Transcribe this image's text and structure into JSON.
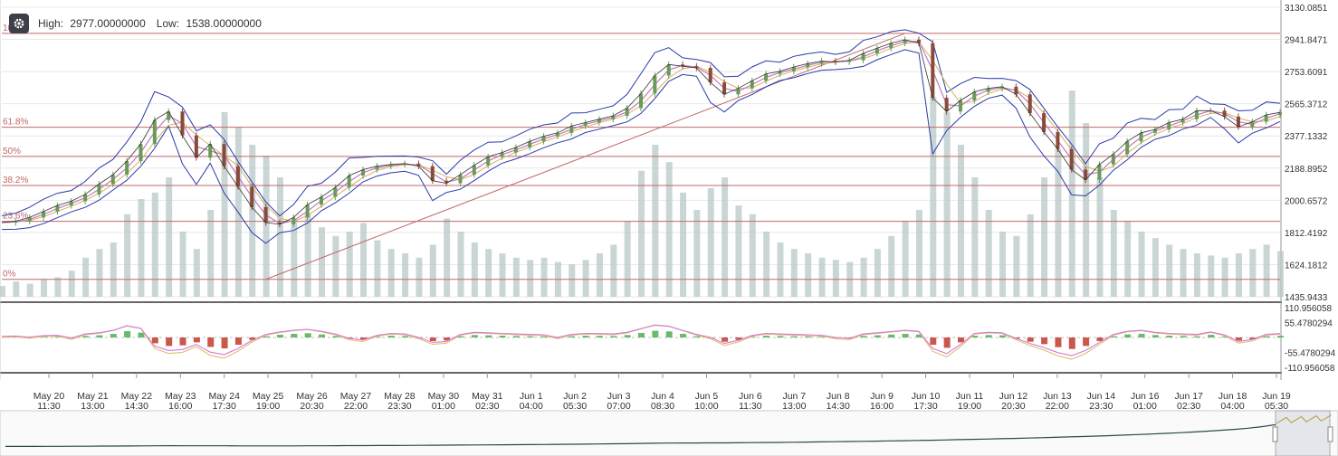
{
  "header": {
    "high_label": "High:",
    "high_value": "2977.00000000",
    "low_label": "Low:",
    "low_value": "1538.00000000",
    "settings_icon": "gear-icon"
  },
  "colors": {
    "fib_line": "#c06868",
    "volume": "#b8c8c8",
    "candle_up": "#6a9a5a",
    "candle_down": "#8a4a3a",
    "bollinger": "#2a3aaa",
    "ma1": "#c07ac0",
    "ma2": "#d8b060",
    "macd_pos": "#4caf50",
    "macd_neg": "#c0392b",
    "signal1": "#d47bd4",
    "signal2": "#e0c070",
    "navigator": "#2a4a4a"
  },
  "chart_data": [
    {
      "type": "line",
      "name": "price",
      "title": "",
      "y_ticks": [
        "3130.0851",
        "2941.8471",
        "2753.6091",
        "2565.3712",
        "2377.1332",
        "2188.8952",
        "2000.6572",
        "1812.4192",
        "1624.1812",
        "1435.9433"
      ],
      "ylim": [
        1435.9433,
        3130.0851
      ],
      "fib_levels": [
        {
          "label": "100%",
          "value": 2977
        },
        {
          "label": "61.8%",
          "value": 2427.7
        },
        {
          "label": "50%",
          "value": 2257.5
        },
        {
          "label": "38.2%",
          "value": 2087.3
        },
        {
          "label": "23.6%",
          "value": 1877.4
        },
        {
          "label": "0%",
          "value": 1538
        }
      ],
      "x_ticks": [
        {
          "date": "May 20",
          "time": "11:30"
        },
        {
          "date": "May 21",
          "time": "13:00"
        },
        {
          "date": "May 22",
          "time": "14:30"
        },
        {
          "date": "May 23",
          "time": "16:00"
        },
        {
          "date": "May 24",
          "time": "17:30"
        },
        {
          "date": "May 25",
          "time": "19:00"
        },
        {
          "date": "May 26",
          "time": "20:30"
        },
        {
          "date": "May 27",
          "time": "22:00"
        },
        {
          "date": "May 28",
          "time": "23:30"
        },
        {
          "date": "May 30",
          "time": "01:00"
        },
        {
          "date": "May 31",
          "time": "02:30"
        },
        {
          "date": "Jun 1",
          "time": "04:00"
        },
        {
          "date": "Jun 2",
          "time": "05:30"
        },
        {
          "date": "Jun 3",
          "time": "07:00"
        },
        {
          "date": "Jun 4",
          "time": "08:30"
        },
        {
          "date": "Jun 5",
          "time": "10:00"
        },
        {
          "date": "Jun 6",
          "time": "11:30"
        },
        {
          "date": "Jun 7",
          "time": "13:00"
        },
        {
          "date": "Jun 8",
          "time": "14:30"
        },
        {
          "date": "Jun 9",
          "time": "16:00"
        },
        {
          "date": "Jun 10",
          "time": "17:30"
        },
        {
          "date": "Jun 11",
          "time": "19:00"
        },
        {
          "date": "Jun 12",
          "time": "20:30"
        },
        {
          "date": "Jun 13",
          "time": "22:00"
        },
        {
          "date": "Jun 14",
          "time": "23:30"
        },
        {
          "date": "Jun 16",
          "time": "01:00"
        },
        {
          "date": "Jun 17",
          "time": "02:30"
        },
        {
          "date": "Jun 18",
          "time": "04:00"
        },
        {
          "date": "Jun 19",
          "time": "05:30"
        }
      ],
      "series": [
        {
          "values": [
            1870,
            1878,
            1900,
            1935,
            1970,
            1995,
            2035,
            2095,
            2150,
            2230,
            2330,
            2470,
            2520,
            2380,
            2250,
            2330,
            2200,
            2080,
            1960,
            1870,
            1860,
            1900,
            1975,
            2020,
            2075,
            2145,
            2180,
            2200,
            2210,
            2215,
            2200,
            2115,
            2100,
            2150,
            2205,
            2255,
            2280,
            2310,
            2345,
            2375,
            2395,
            2435,
            2455,
            2475,
            2495,
            2540,
            2625,
            2730,
            2795,
            2785,
            2775,
            2690,
            2620,
            2655,
            2700,
            2740,
            2755,
            2780,
            2800,
            2815,
            2810,
            2820,
            2860,
            2890,
            2920,
            2940,
            2920,
            2600,
            2520,
            2585,
            2635,
            2655,
            2665,
            2620,
            2510,
            2400,
            2300,
            2180,
            2120,
            2210,
            2270,
            2345,
            2395,
            2415,
            2455,
            2475,
            2525,
            2525,
            2490,
            2430,
            2460,
            2500,
            2515
          ]
        }
      ]
    },
    {
      "type": "bar",
      "name": "volume",
      "values": [
        5,
        7,
        6,
        8,
        9,
        12,
        18,
        22,
        25,
        38,
        45,
        48,
        55,
        30,
        22,
        40,
        85,
        78,
        70,
        65,
        55,
        35,
        38,
        32,
        28,
        30,
        34,
        26,
        22,
        20,
        18,
        24,
        36,
        30,
        25,
        22,
        20,
        18,
        17,
        18,
        16,
        15,
        17,
        20,
        24,
        35,
        58,
        70,
        62,
        48,
        40,
        50,
        55,
        42,
        38,
        30,
        25,
        22,
        20,
        18,
        17,
        16,
        18,
        22,
        28,
        35,
        40,
        92,
        85,
        70,
        55,
        40,
        30,
        28,
        38,
        55,
        68,
        95,
        80,
        55,
        40,
        35,
        30,
        27,
        24,
        22,
        20,
        19,
        18,
        20,
        22,
        24,
        21
      ]
    },
    {
      "type": "area",
      "name": "macd",
      "y_ticks": [
        "110.956058",
        "55.4780294",
        "-55.4780294",
        "-110.956058"
      ],
      "ylim": [
        -110.956058,
        110.956058
      ],
      "values": [
        0,
        2,
        -3,
        4,
        6,
        -8,
        12,
        18,
        30,
        52,
        40,
        -48,
        -70,
        -65,
        -40,
        -78,
        -90,
        -60,
        -20,
        10,
        22,
        30,
        35,
        25,
        12,
        -10,
        -18,
        5,
        15,
        12,
        -5,
        -30,
        -25,
        10,
        20,
        18,
        15,
        12,
        10,
        8,
        -5,
        10,
        15,
        14,
        12,
        20,
        38,
        55,
        50,
        30,
        10,
        -5,
        -35,
        -20,
        5,
        15,
        12,
        10,
        8,
        6,
        -5,
        -10,
        12,
        18,
        24,
        30,
        25,
        -60,
        -85,
        -40,
        15,
        20,
        18,
        -10,
        -35,
        -55,
        -80,
        -95,
        -70,
        -30,
        10,
        25,
        30,
        20,
        15,
        12,
        10,
        22,
        8,
        -25,
        -15,
        10,
        14
      ]
    },
    {
      "type": "line",
      "name": "navigator",
      "values": [
        1,
        1,
        1.1,
        1.2,
        1.3,
        1.4,
        1.5,
        1.7,
        1.8,
        2,
        2.2,
        2.4,
        2.5,
        2.4,
        2.3,
        2.4,
        2.3,
        2.2,
        2.1,
        2.1,
        2.1,
        2.2,
        2.3,
        2.4,
        2.5,
        2.6,
        2.7,
        2.8,
        2.9,
        3.1,
        3.2,
        3.4,
        3.5,
        3.7,
        3.9,
        4.1,
        4.3,
        4.5,
        4.7,
        4.9,
        5.1,
        5.3,
        5.6,
        5.9,
        6.2,
        6.5,
        6.9,
        7.3,
        7.6,
        7.8,
        7.9,
        8,
        8.1,
        8.3,
        8.5,
        8.8,
        9,
        9.3,
        9.6,
        10,
        10.3,
        10.7,
        11,
        11.4,
        11.9,
        12.4,
        12.9,
        13.3,
        13.8,
        14.4,
        15,
        15.6,
        16.2,
        16.8,
        17.5,
        18.2,
        19,
        19.8,
        20.6,
        21.5,
        22.4,
        23.4,
        24.4,
        25.5,
        26.7,
        28,
        29.4,
        31,
        32.8,
        34.6,
        37,
        40,
        44
      ]
    }
  ]
}
